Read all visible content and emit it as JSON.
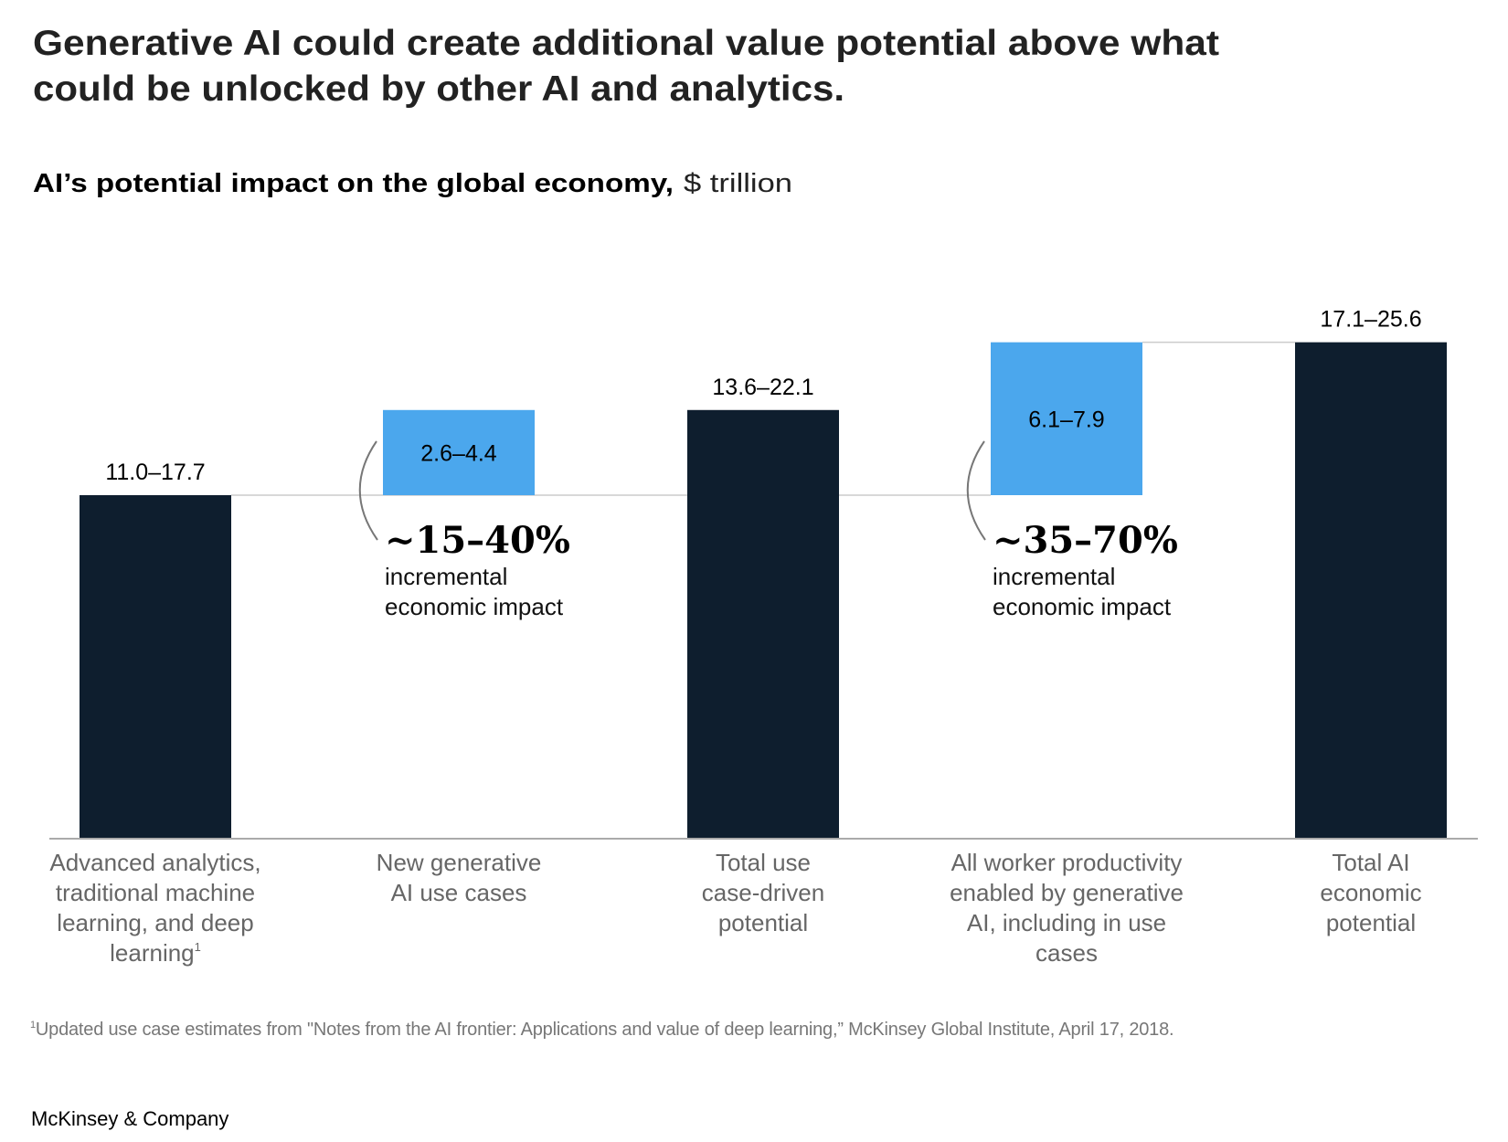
{
  "header": {
    "title_lines": [
      "Generative AI could create additional value potential above what",
      "could be unlocked by other AI and analytics."
    ],
    "subtitle_bold": "AI’s potential impact on the global economy,",
    "subtitle_unit": "$ trillion"
  },
  "chart_data": {
    "type": "bar",
    "subtype": "waterfall",
    "title": "AI’s potential impact on the global economy, $ trillion",
    "xlabel": "",
    "ylabel": "$ trillion",
    "ylim": [
      0,
      25.6
    ],
    "grid": false,
    "categories": [
      "Advanced analytics, traditional machine learning, and deep learning¹",
      "New generative AI use cases",
      "Total use case-driven potential",
      "All worker productivity enabled by generative AI, including in use cases",
      "Total AI economic potential"
    ],
    "category_lines": [
      [
        "Advanced analytics,",
        "traditional machine",
        "learning, and deep",
        "learning¹"
      ],
      [
        "New generative",
        "AI use cases"
      ],
      [
        "Total use",
        "case-driven",
        "potential"
      ],
      [
        "All worker productivity",
        "enabled by generative",
        "AI, including in use",
        "cases"
      ],
      [
        "Total AI",
        "economic",
        "potential"
      ]
    ],
    "bars": [
      {
        "kind": "total",
        "low": 11.0,
        "high": 17.7,
        "base": 0,
        "top": 17.7,
        "label": "11.0–17.7"
      },
      {
        "kind": "increment",
        "low": 2.6,
        "high": 4.4,
        "base": 17.7,
        "top": 22.1,
        "label": "2.6–4.4"
      },
      {
        "kind": "total",
        "low": 13.6,
        "high": 22.1,
        "base": 0,
        "top": 22.1,
        "label": "13.6–22.1"
      },
      {
        "kind": "increment",
        "low": 6.1,
        "high": 7.9,
        "base": 17.7,
        "top": 25.6,
        "label": "6.1–7.9"
      },
      {
        "kind": "total",
        "low": 17.1,
        "high": 25.6,
        "base": 0,
        "top": 25.6,
        "label": "17.1–25.6"
      }
    ],
    "annotations": [
      {
        "attached_to": 1,
        "value": "~15–40%",
        "text_lines": [
          "incremental",
          "economic impact"
        ]
      },
      {
        "attached_to": 3,
        "value": "~35–70%",
        "text_lines": [
          "incremental",
          "economic impact"
        ]
      }
    ],
    "colors": {
      "total": "#0E1E2E",
      "increment": "#4BA7ED",
      "axis": "#AAAAAA",
      "connector": "#CCCCCC",
      "bracket": "#777777"
    }
  },
  "footnote": {
    "marker": "1",
    "text": "Updated use case estimates from \"Notes from the AI frontier: Applications and value of deep learning,” McKinsey Global Institute, April 17, 2018."
  },
  "brand": "McKinsey & Company"
}
